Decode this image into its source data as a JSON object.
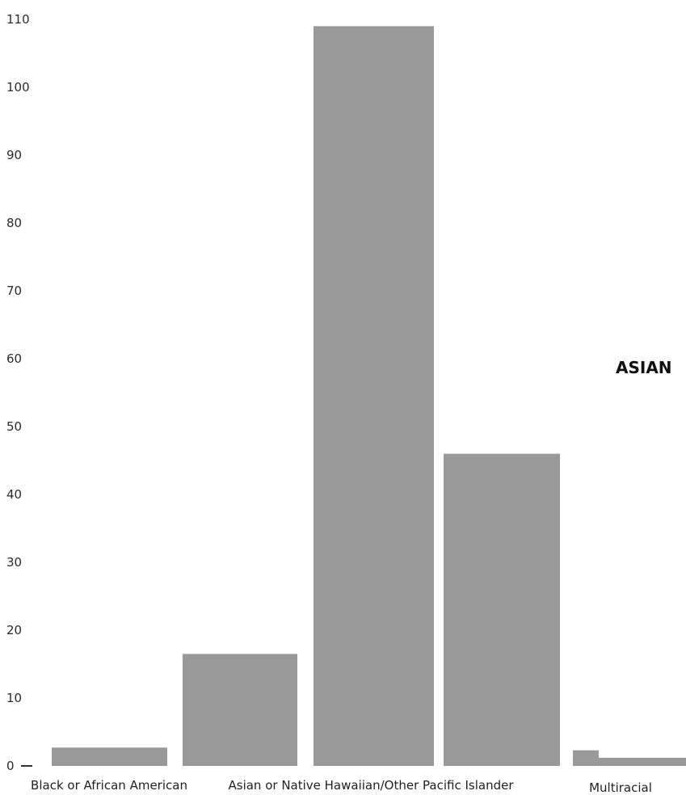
{
  "chart_data": {
    "type": "bar",
    "categories": [
      "Black or African American",
      "",
      "",
      "",
      "",
      ""
    ],
    "values": [
      2.7,
      16.5,
      109,
      0,
      46,
      2.3
    ],
    "extra_bar_after_multiracial": 1.2,
    "category_labels_shown": [
      "Black or African American",
      "Asian or Native Hawaiian/Other Pacific Islander",
      "Multiracial"
    ],
    "yticks": [
      "0",
      "10",
      "20",
      "30",
      "40",
      "50",
      "60",
      "70",
      "80",
      "90",
      "100",
      "110"
    ],
    "ylim": [
      0,
      110
    ],
    "side_label": "ASIAN",
    "grid": false,
    "colors": {
      "bar": "#999999",
      "text": "#1f1f1f"
    }
  }
}
